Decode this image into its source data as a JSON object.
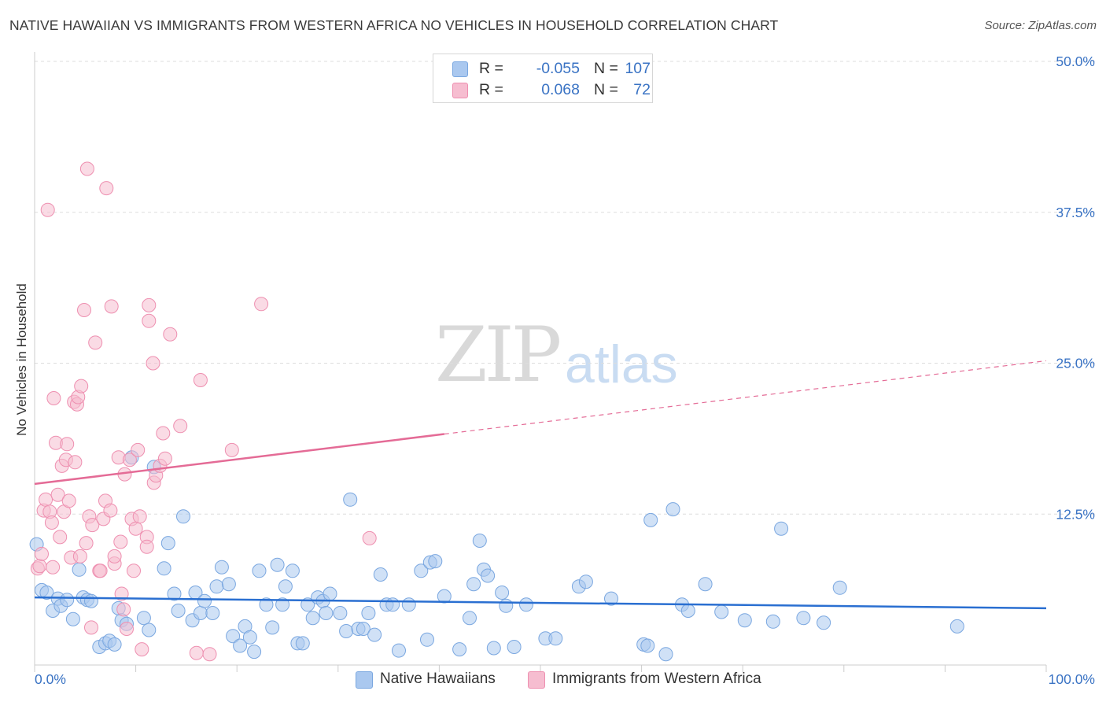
{
  "title": "NATIVE HAWAIIAN VS IMMIGRANTS FROM WESTERN AFRICA NO VEHICLES IN HOUSEHOLD CORRELATION CHART",
  "source": "Source: ZipAtlas.com",
  "watermark": {
    "zip": "ZIP",
    "atlas": "atlas"
  },
  "legend": {
    "rows": [
      {
        "r_label": "R =",
        "r_value": "-0.055",
        "n_label": "N =",
        "n_value": "107",
        "color": "#aac8ef",
        "border": "#7aa7e0"
      },
      {
        "r_label": "R =",
        "r_value": "0.068",
        "n_label": "N =",
        "n_value": "72",
        "color": "#f6bdd0",
        "border": "#ee8fb0"
      }
    ],
    "bottom": [
      {
        "label": "Native Hawaiians",
        "color": "#aac8ef",
        "border": "#7aa7e0"
      },
      {
        "label": "Immigrants from Western Africa",
        "color": "#f6bdd0",
        "border": "#ee8fb0"
      }
    ]
  },
  "chart_data": {
    "type": "scatter",
    "title": "NATIVE HAWAIIAN VS IMMIGRANTS FROM WESTERN AFRICA NO VEHICLES IN HOUSEHOLD CORRELATION CHART",
    "xlabel": "",
    "ylabel": "No Vehicles in Household",
    "xlim": [
      0,
      100
    ],
    "ylim": [
      0,
      50
    ],
    "x_tick_labels": [
      "0.0%",
      "100.0%"
    ],
    "y_ticks": [
      12.5,
      25.0,
      37.5,
      50.0
    ],
    "y_tick_labels": [
      "12.5%",
      "25.0%",
      "37.5%",
      "50.0%"
    ],
    "grid": true,
    "series": [
      {
        "name": "Native Hawaiians",
        "color": "#aac8ef",
        "stroke": "#7aa7e0",
        "r": -0.055,
        "n": 107,
        "trend": {
          "x0": 0,
          "y0": 5.6,
          "x1": 100,
          "y1": 4.7,
          "solid_until": 100,
          "color": "#2a6fd1"
        },
        "points": [
          [
            0.2,
            10.0
          ],
          [
            0.7,
            6.2
          ],
          [
            1.2,
            6.0
          ],
          [
            1.8,
            4.5
          ],
          [
            2.3,
            5.5
          ],
          [
            2.6,
            4.9
          ],
          [
            3.2,
            5.4
          ],
          [
            3.8,
            3.8
          ],
          [
            4.4,
            7.9
          ],
          [
            4.8,
            5.6
          ],
          [
            5.2,
            5.4
          ],
          [
            5.6,
            5.3
          ],
          [
            6.4,
            1.5
          ],
          [
            7.0,
            1.8
          ],
          [
            7.4,
            2.0
          ],
          [
            7.9,
            1.7
          ],
          [
            8.3,
            4.7
          ],
          [
            8.6,
            3.7
          ],
          [
            9.1,
            3.4
          ],
          [
            9.6,
            17.2
          ],
          [
            10.8,
            3.9
          ],
          [
            11.3,
            2.9
          ],
          [
            11.8,
            16.4
          ],
          [
            12.8,
            8.0
          ],
          [
            13.2,
            10.1
          ],
          [
            13.8,
            5.9
          ],
          [
            14.2,
            4.5
          ],
          [
            14.7,
            12.3
          ],
          [
            15.6,
            3.7
          ],
          [
            15.9,
            6.0
          ],
          [
            16.4,
            4.3
          ],
          [
            16.8,
            5.3
          ],
          [
            17.6,
            4.3
          ],
          [
            18.0,
            6.5
          ],
          [
            18.5,
            8.1
          ],
          [
            19.2,
            6.7
          ],
          [
            19.6,
            2.4
          ],
          [
            20.3,
            1.6
          ],
          [
            20.8,
            3.2
          ],
          [
            21.3,
            2.3
          ],
          [
            21.7,
            1.1
          ],
          [
            22.2,
            7.8
          ],
          [
            22.9,
            5.0
          ],
          [
            23.5,
            3.1
          ],
          [
            24.0,
            8.3
          ],
          [
            24.5,
            5.0
          ],
          [
            24.8,
            6.5
          ],
          [
            25.5,
            7.8
          ],
          [
            26.0,
            1.8
          ],
          [
            26.5,
            1.8
          ],
          [
            27.0,
            5.0
          ],
          [
            27.5,
            3.9
          ],
          [
            28.0,
            5.6
          ],
          [
            28.5,
            5.3
          ],
          [
            28.8,
            4.3
          ],
          [
            29.2,
            5.9
          ],
          [
            30.2,
            4.3
          ],
          [
            30.8,
            2.8
          ],
          [
            31.2,
            13.7
          ],
          [
            32.0,
            3.0
          ],
          [
            32.5,
            3.0
          ],
          [
            33.0,
            4.3
          ],
          [
            33.6,
            2.5
          ],
          [
            34.2,
            7.5
          ],
          [
            34.8,
            5.0
          ],
          [
            35.4,
            5.0
          ],
          [
            36.0,
            1.2
          ],
          [
            37.0,
            5.0
          ],
          [
            38.2,
            7.8
          ],
          [
            38.8,
            2.1
          ],
          [
            39.1,
            8.5
          ],
          [
            39.6,
            8.6
          ],
          [
            40.5,
            5.7
          ],
          [
            42.0,
            1.3
          ],
          [
            43.0,
            3.9
          ],
          [
            43.4,
            6.7
          ],
          [
            44.0,
            10.3
          ],
          [
            44.4,
            7.9
          ],
          [
            44.8,
            7.4
          ],
          [
            45.4,
            1.4
          ],
          [
            46.2,
            6.0
          ],
          [
            46.6,
            4.9
          ],
          [
            47.4,
            1.5
          ],
          [
            48.6,
            5.0
          ],
          [
            50.5,
            2.2
          ],
          [
            51.5,
            2.2
          ],
          [
            53.8,
            6.5
          ],
          [
            54.5,
            6.9
          ],
          [
            57.0,
            5.5
          ],
          [
            60.2,
            1.7
          ],
          [
            60.6,
            1.6
          ],
          [
            60.9,
            12.0
          ],
          [
            62.4,
            0.9
          ],
          [
            63.1,
            12.9
          ],
          [
            64.0,
            5.0
          ],
          [
            64.6,
            4.5
          ],
          [
            66.3,
            6.7
          ],
          [
            67.9,
            4.4
          ],
          [
            70.2,
            3.7
          ],
          [
            73.0,
            3.6
          ],
          [
            73.8,
            11.3
          ],
          [
            76.0,
            3.9
          ],
          [
            78.0,
            3.5
          ],
          [
            79.6,
            6.4
          ],
          [
            91.2,
            3.2
          ]
        ]
      },
      {
        "name": "Immigrants from Western Africa",
        "color": "#f6bdd0",
        "stroke": "#ee8fb0",
        "r": 0.068,
        "n": 72,
        "trend": {
          "x0": 0,
          "y0": 15.0,
          "x1": 100,
          "y1": 25.2,
          "solid_until": 40.5,
          "color": "#e46b96"
        },
        "points": [
          [
            0.3,
            8.0
          ],
          [
            0.5,
            8.2
          ],
          [
            0.7,
            9.2
          ],
          [
            0.9,
            12.8
          ],
          [
            1.1,
            13.7
          ],
          [
            1.3,
            37.7
          ],
          [
            1.5,
            12.7
          ],
          [
            1.7,
            11.8
          ],
          [
            1.8,
            8.1
          ],
          [
            1.9,
            22.1
          ],
          [
            2.1,
            18.4
          ],
          [
            2.3,
            14.1
          ],
          [
            2.5,
            10.6
          ],
          [
            2.7,
            16.5
          ],
          [
            2.9,
            12.7
          ],
          [
            3.1,
            17.0
          ],
          [
            3.2,
            18.3
          ],
          [
            3.4,
            13.6
          ],
          [
            3.6,
            8.9
          ],
          [
            3.9,
            21.8
          ],
          [
            4.0,
            16.8
          ],
          [
            4.2,
            21.6
          ],
          [
            4.3,
            22.2
          ],
          [
            4.5,
            9.0
          ],
          [
            4.6,
            23.1
          ],
          [
            4.9,
            29.4
          ],
          [
            5.1,
            10.1
          ],
          [
            5.2,
            41.1
          ],
          [
            5.4,
            12.3
          ],
          [
            5.6,
            3.1
          ],
          [
            5.7,
            11.6
          ],
          [
            6.0,
            26.7
          ],
          [
            6.4,
            7.8
          ],
          [
            6.5,
            7.8
          ],
          [
            6.8,
            12.1
          ],
          [
            7.0,
            13.6
          ],
          [
            7.1,
            39.5
          ],
          [
            7.5,
            12.8
          ],
          [
            7.6,
            29.7
          ],
          [
            7.9,
            8.4
          ],
          [
            7.9,
            9.0
          ],
          [
            8.3,
            17.2
          ],
          [
            8.5,
            10.2
          ],
          [
            8.6,
            5.9
          ],
          [
            8.8,
            4.6
          ],
          [
            8.9,
            15.8
          ],
          [
            9.1,
            3.0
          ],
          [
            9.4,
            17.0
          ],
          [
            9.6,
            12.1
          ],
          [
            9.8,
            7.8
          ],
          [
            10.0,
            11.3
          ],
          [
            10.2,
            17.8
          ],
          [
            10.4,
            12.3
          ],
          [
            10.6,
            1.3
          ],
          [
            11.1,
            10.6
          ],
          [
            11.1,
            9.8
          ],
          [
            11.3,
            29.8
          ],
          [
            11.3,
            28.5
          ],
          [
            11.7,
            25.0
          ],
          [
            11.8,
            15.1
          ],
          [
            12.0,
            15.7
          ],
          [
            12.4,
            16.5
          ],
          [
            12.7,
            19.2
          ],
          [
            12.9,
            17.1
          ],
          [
            13.4,
            27.4
          ],
          [
            14.4,
            19.8
          ],
          [
            16.0,
            1.0
          ],
          [
            16.4,
            23.6
          ],
          [
            17.3,
            0.9
          ],
          [
            19.5,
            17.8
          ],
          [
            22.4,
            29.9
          ],
          [
            33.1,
            10.5
          ]
        ]
      }
    ]
  }
}
